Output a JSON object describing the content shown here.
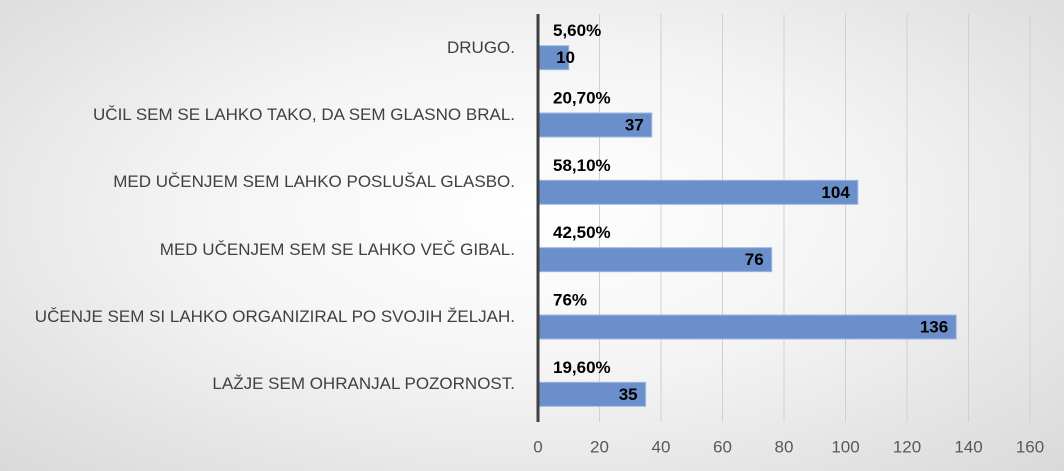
{
  "chart_data": {
    "type": "bar",
    "orientation": "horizontal",
    "categories": [
      "DRUGO.",
      "UČIL SEM SE LAHKO TAKO, DA SEM GLASNO BRAL.",
      "MED UČENJEM SEM LAHKO POSLUŠAL GLASBO.",
      "MED UČENJEM SEM SE LAHKO VEČ GIBAL.",
      "UČENJE SEM SI LAHKO ORGANIZIRAL PO SVOJIH ŽELJAH.",
      "LAŽJE SEM OHRANJAL POZORNOST."
    ],
    "values": [
      10,
      37,
      104,
      76,
      136,
      35
    ],
    "percentages": [
      5.6,
      20.7,
      58.1,
      42.5,
      76,
      19.6
    ],
    "percentage_labels": [
      "5,60%",
      "20,70%",
      "58,10%",
      "42,50%",
      "76%",
      "19,60%"
    ],
    "color": "#6a8fca",
    "xlim": [
      0,
      160
    ],
    "xticks": [
      0,
      20,
      40,
      60,
      80,
      100,
      120,
      140,
      160
    ],
    "grid": true
  }
}
